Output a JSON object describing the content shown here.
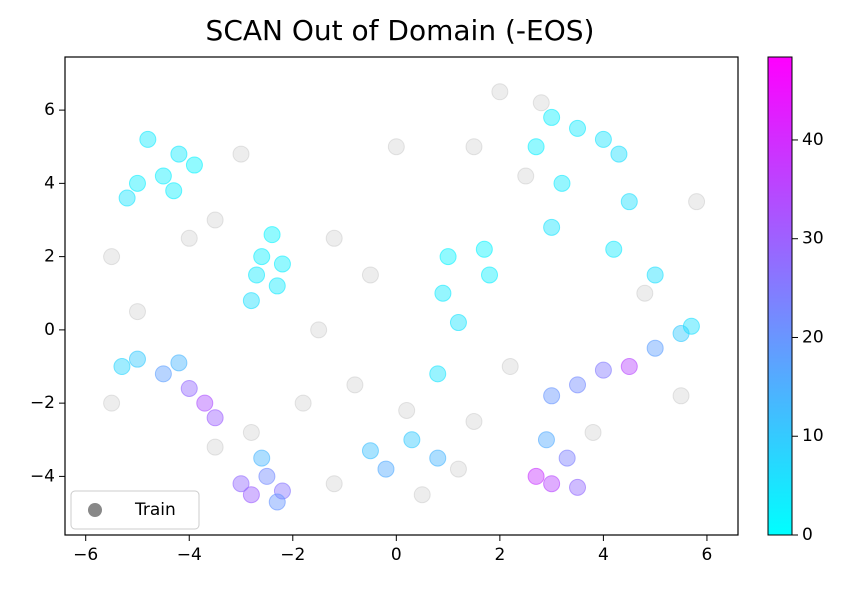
{
  "chart_data": {
    "type": "scatter",
    "title": "SCAN Out of Domain (-EOS)",
    "xlim": [
      -6.4,
      6.6
    ],
    "ylim": [
      -5.6,
      7.45
    ],
    "xticks": [
      {
        "value": -6,
        "label": "−6"
      },
      {
        "value": -4,
        "label": "−4"
      },
      {
        "value": -2,
        "label": "−2"
      },
      0,
      2,
      4,
      6
    ],
    "yticks": [
      {
        "value": -4,
        "label": "−4"
      },
      {
        "value": -2,
        "label": "−2"
      },
      0,
      2,
      4,
      6
    ],
    "legend": "lower left",
    "colormap": "cool",
    "clim": [
      0,
      48.4
    ],
    "cticks": [
      0,
      10,
      20,
      30,
      40
    ],
    "series": [
      {
        "name": "Train",
        "color": "#888888",
        "x": [
          -5.5,
          -5,
          -3.5,
          -1.5,
          -1.8,
          -1.2,
          0.5,
          -0.5,
          0,
          1.5,
          2.5,
          2.2,
          1.5,
          5.5,
          5.8,
          -3,
          -4,
          -5.5,
          -3.5,
          2,
          2.8,
          -0.8,
          1.2,
          3.8,
          4.8,
          -2.8,
          -1.2,
          0.2
        ],
        "y": [
          2,
          0.5,
          3,
          0,
          -2,
          -4.2,
          -4.5,
          1.5,
          5,
          5,
          4.2,
          -1,
          -2.5,
          -1.8,
          3.5,
          4.8,
          2.5,
          -2,
          -3.2,
          6.5,
          6.2,
          -1.5,
          -3.8,
          -2.8,
          1,
          -2.8,
          2.5,
          -2.2
        ]
      },
      {
        "x": [
          -5,
          -4.2,
          -4.5,
          -5.2,
          -3.9,
          -4.8,
          -4.3,
          -2.6,
          -2.3,
          -2.8,
          -2.4,
          -2.2,
          -2.7,
          -5,
          -4.5,
          -4,
          -3.7,
          -4.2,
          -3.5,
          -5.3,
          -2.8,
          -2.5,
          -2.2,
          -2.6,
          -3,
          -2.3,
          -0.5,
          0.3,
          0.8,
          -0.2,
          1,
          1.8,
          0.9,
          1.7,
          1.2,
          0.8,
          3,
          2.7,
          3.3,
          2.9,
          3.5,
          3,
          4,
          4.5,
          5,
          5.5,
          3.5,
          5.7,
          3,
          3.5,
          4,
          4.3,
          2.7,
          3.2,
          4.5,
          3,
          4.2,
          5
        ],
        "y": [
          4,
          4.8,
          4.2,
          3.6,
          4.5,
          5.2,
          3.8,
          2,
          1.2,
          0.8,
          2.6,
          1.8,
          1.5,
          -0.8,
          -1.2,
          -1.6,
          -2,
          -0.9,
          -2.4,
          -1,
          -4.5,
          -4,
          -4.4,
          -3.5,
          -4.2,
          -4.7,
          -3.3,
          -3,
          -3.5,
          -3.8,
          2,
          1.5,
          1,
          2.2,
          0.2,
          -1.2,
          -4.2,
          -4,
          -3.5,
          -3,
          -4.3,
          -1.8,
          -1.1,
          -1,
          -0.5,
          -0.1,
          -1.5,
          0.1,
          5.8,
          5.5,
          5.2,
          4.8,
          5,
          4,
          3.5,
          2.8,
          2.2,
          1.5
        ],
        "c": [
          3,
          4,
          3,
          5,
          2,
          4,
          3,
          3,
          4,
          6,
          2,
          3,
          4,
          10,
          18,
          28,
          33,
          14,
          30,
          8,
          30,
          22,
          26,
          14,
          28,
          20,
          12,
          10,
          14,
          16,
          2,
          3,
          4,
          2,
          5,
          5,
          35,
          38,
          24,
          16,
          28,
          20,
          25,
          35,
          18,
          10,
          22,
          6,
          3,
          4,
          5,
          6,
          3,
          4,
          6,
          5,
          4,
          6
        ]
      }
    ]
  }
}
